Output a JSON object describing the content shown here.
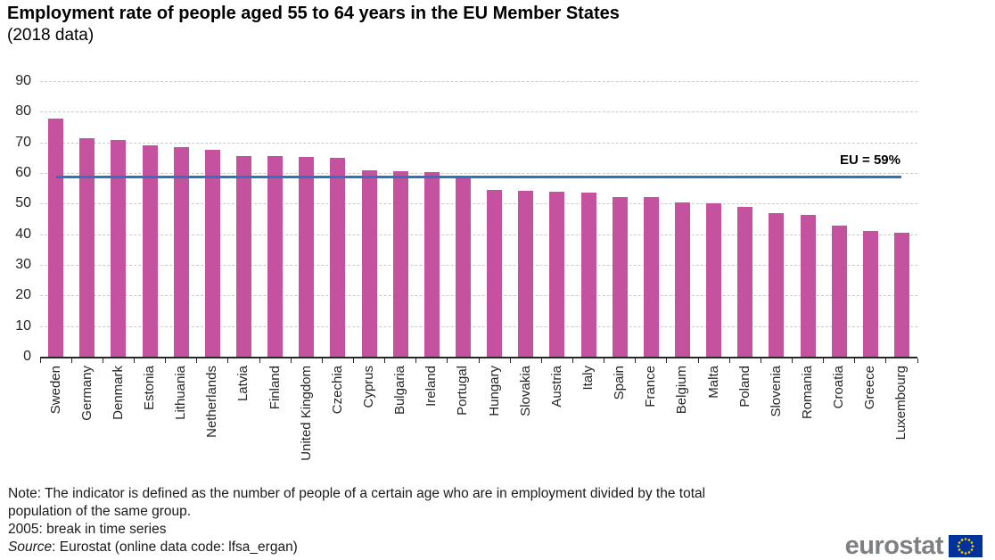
{
  "title": "Employment rate of people aged 55 to 64 years in the EU Member States",
  "subtitle": "(2018 data)",
  "chart_data": {
    "type": "bar",
    "title": "Employment rate of people aged 55 to 64 years in the EU Member States (2018 data)",
    "categories": [
      "Sweden",
      "Germany",
      "Denmark",
      "Estonia",
      "Lithuania",
      "Netherlands",
      "Latvia",
      "Finland",
      "United Kingdom",
      "Czechia",
      "Cyprus",
      "Bulgaria",
      "Ireland",
      "Portugal",
      "Hungary",
      "Slovakia",
      "Austria",
      "Italy",
      "Spain",
      "France",
      "Belgium",
      "Malta",
      "Poland",
      "Slovenia",
      "Romania",
      "Croatia",
      "Greece",
      "Luxembourg"
    ],
    "values": [
      77.9,
      71.4,
      70.7,
      68.9,
      68.5,
      67.7,
      65.4,
      65.4,
      65.3,
      65.1,
      60.9,
      60.7,
      60.4,
      59.2,
      54.4,
      54.2,
      54.0,
      53.7,
      52.2,
      52.1,
      50.3,
      50.2,
      48.9,
      47.0,
      46.3,
      42.8,
      41.1,
      40.5
    ],
    "xlabel": "",
    "ylabel": "",
    "ylim": [
      0,
      90
    ],
    "yticks": [
      0,
      10,
      20,
      30,
      40,
      50,
      60,
      70,
      80,
      90
    ],
    "grid": true,
    "legend_position": "none",
    "bar_color": "#c4529e",
    "reference_line": {
      "label": "EU = 59%",
      "value": 58.7,
      "color": "#2e74b9"
    }
  },
  "notes": {
    "line1": "Note: The indicator is defined as the number of people of a certain age who are in employment divided by the total",
    "line2": "population of the same group.",
    "line3": "2005: break in time series"
  },
  "source": {
    "label": "Source",
    "text": ": Eurostat (online data code: lfsa_ergan)"
  },
  "logo": {
    "text": "eurostat",
    "flag": "eu-flag-icon",
    "flag_blue": "#003399",
    "star_yellow": "#ffcc00",
    "text_color": "#7f8084"
  }
}
